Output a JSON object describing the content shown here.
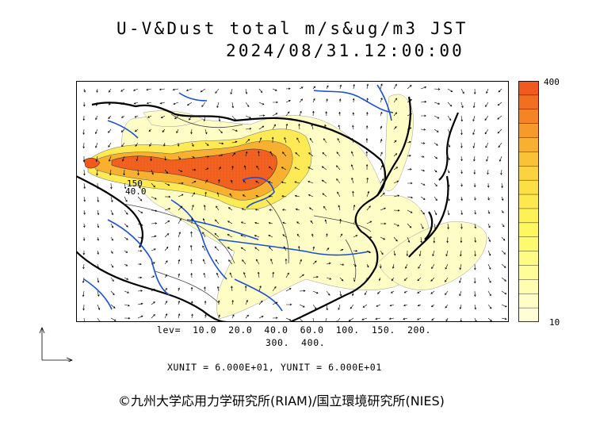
{
  "title": {
    "line1": "U-V&Dust total m/s&ug/m3 JST",
    "line2": "2024/08/31.12:00:00"
  },
  "colorbar": {
    "max_label": "400",
    "min_label": "10",
    "colors": [
      "#f05a1e",
      "#f26f20",
      "#f48424",
      "#f69a2a",
      "#f8b030",
      "#fac337",
      "#fbd33e",
      "#fcdf45",
      "#fde94d",
      "#fdf155",
      "#fef75f",
      "#fefa70",
      "#fefc84",
      "#fffd9a",
      "#fffdb0",
      "#fffec6",
      "#fffed9"
    ]
  },
  "map": {
    "contour_label_a": "150",
    "contour_label_b": "40.0"
  },
  "levels_line1": "lev=  10.0  20.0  40.0  60.0  100.  150.  200.",
  "levels_line2": "300.  400.",
  "units": "XUNIT = 6.000E+01, YUNIT = 6.000E+01",
  "copyright": "©九州大学応用力学研究所(RIAM)/国立環境研究所(NIES)"
}
